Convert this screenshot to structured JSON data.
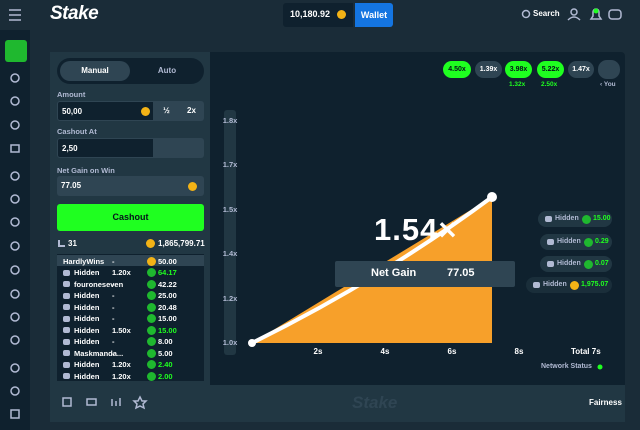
{
  "header": {
    "logo": "Stake",
    "balance": "10,180.92",
    "wallet": "Wallet",
    "search": "Search"
  },
  "controls": {
    "tabs": [
      "Manual",
      "Auto"
    ],
    "amount_label": "Amount",
    "amount": "50,00",
    "half": "½",
    "double": "2x",
    "cashout_label": "Cashout At",
    "cashout_at": "2,50",
    "net_gain_label": "Net Gain on Win",
    "net_gain": "77.05",
    "button": "Cashout"
  },
  "players": {
    "count": "31",
    "total": "1,865,799.71",
    "rows": [
      [
        "HardlyWins",
        "-",
        "50.00"
      ],
      [
        "Hidden",
        "1.20x",
        "64.17"
      ],
      [
        "fouroneseven",
        "-",
        "42.22"
      ],
      [
        "Hidden",
        "-",
        "25.00"
      ],
      [
        "Hidden",
        "-",
        "20.48"
      ],
      [
        "Hidden",
        "-",
        "15.00"
      ],
      [
        "Hidden",
        "1.50x",
        "15.00"
      ],
      [
        "Hidden",
        "-",
        "8.00"
      ],
      [
        "Maskmanda...",
        "-",
        "5.00"
      ],
      [
        "Hidden",
        "1.20x",
        "2.40"
      ],
      [
        "Hidden",
        "1.20x",
        "2.00"
      ]
    ]
  },
  "game": {
    "history": [
      "4.50x",
      "1.39x",
      "3.98x",
      "5.22x",
      "1.47x"
    ],
    "history_sub": [
      "1.32x",
      "2.50x"
    ],
    "you": "‹ You",
    "y_ticks": [
      "1.8x",
      "1.7x",
      "1.5x",
      "1.4x",
      "1.2x",
      "1.0x"
    ],
    "x_ticks": [
      "2s",
      "4s",
      "6s",
      "8s"
    ],
    "total": "Total 7s",
    "multiplier": "1.54×",
    "net_gain_label": "Net Gain",
    "net_gain": "77.05",
    "winners": [
      [
        "Hidden",
        "15.00"
      ],
      [
        "Hidden",
        "0.29"
      ],
      [
        "Hidden",
        "0.07"
      ],
      [
        "Hidden",
        "1,975.07"
      ]
    ],
    "network": "Network Status"
  },
  "footer": {
    "logo": "Stake",
    "fairness": "Fairness"
  }
}
